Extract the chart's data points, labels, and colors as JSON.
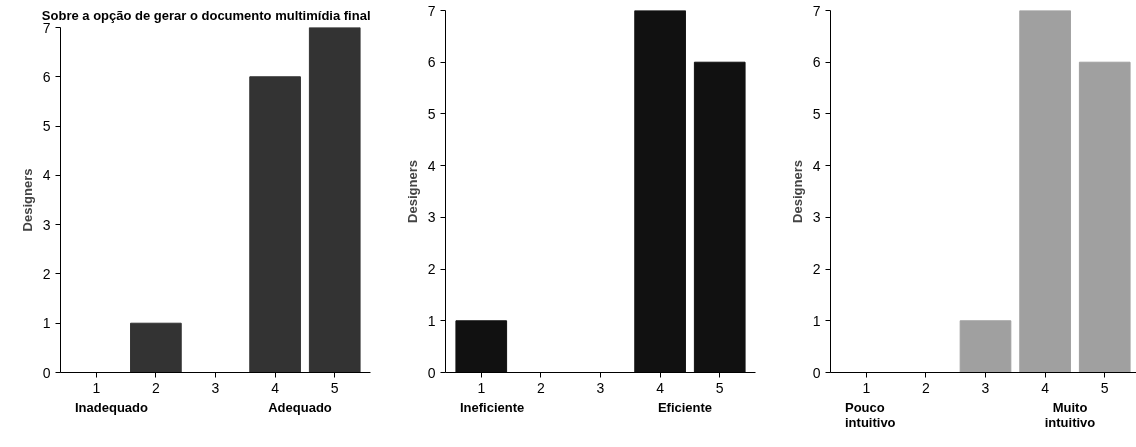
{
  "chart_data": [
    {
      "type": "bar",
      "title": "Sobre a opção de gerar o documento multimídia final",
      "categories": [
        "1",
        "2",
        "3",
        "4",
        "5"
      ],
      "values": [
        0,
        1,
        0,
        6,
        7
      ],
      "color": "#333333",
      "ylabel": "Designers",
      "ylim": [
        0,
        7
      ],
      "yticks": [
        0,
        1,
        2,
        3,
        4,
        5,
        6,
        7
      ],
      "grid": false,
      "annotations": [
        "Inadequado",
        "Adequado"
      ]
    },
    {
      "type": "bar",
      "categories": [
        "1",
        "2",
        "3",
        "4",
        "5"
      ],
      "values": [
        1,
        0,
        0,
        7,
        6
      ],
      "color": "#111111",
      "ylabel": "Designers",
      "ylim": [
        0,
        7
      ],
      "yticks": [
        0,
        1,
        2,
        3,
        4,
        5,
        6,
        7
      ],
      "grid": false,
      "annotations": [
        "Ineficiente",
        "Eficiente"
      ]
    },
    {
      "type": "bar",
      "categories": [
        "1",
        "2",
        "3",
        "4",
        "5"
      ],
      "values": [
        0,
        0,
        1,
        7,
        6
      ],
      "color": "#a0a0a0",
      "ylabel": "Designers",
      "ylim": [
        0,
        7
      ],
      "yticks": [
        0,
        1,
        2,
        3,
        4,
        5,
        6,
        7
      ],
      "grid": false,
      "annotations": [
        "Pouco intuitivo",
        "Muito intuitivo"
      ]
    }
  ]
}
